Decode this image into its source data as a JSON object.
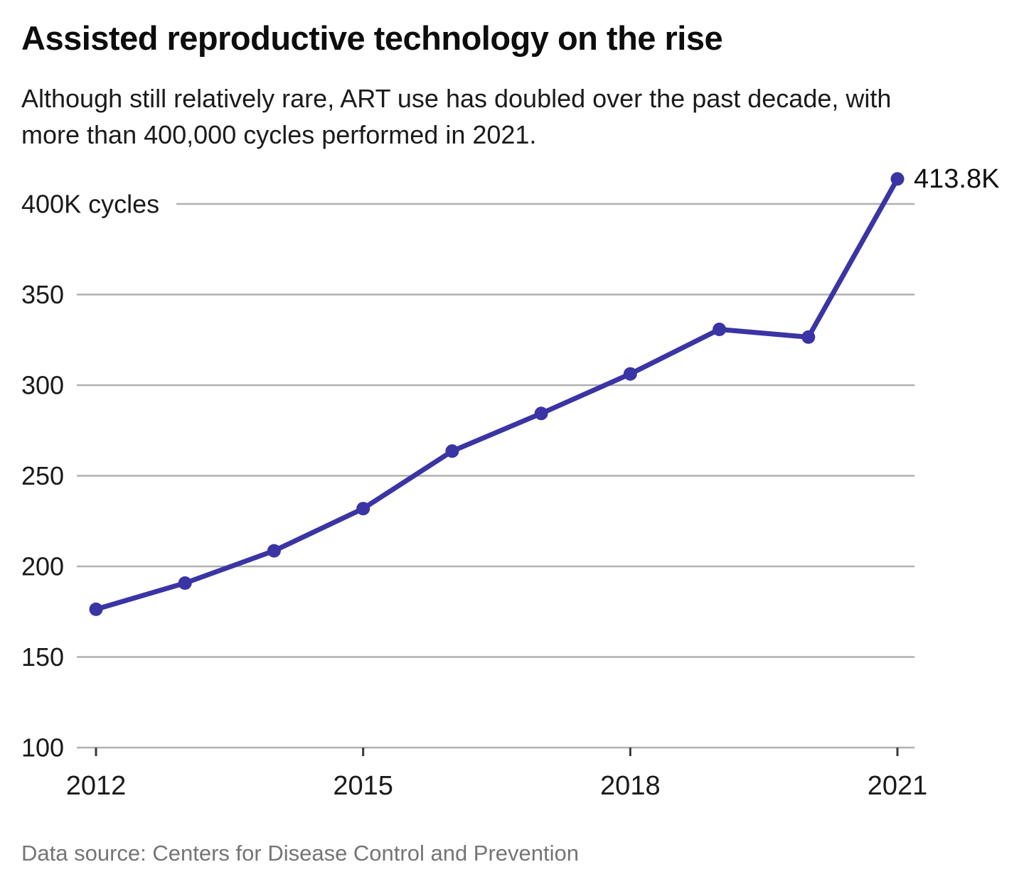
{
  "header": {
    "title": "Assisted reproductive technology on the rise",
    "subtitle": "Although still relatively rare, ART use has doubled over the past decade, with more than 400,000 cycles performed in 2021."
  },
  "footer": {
    "source": "Data source: Centers for Disease Control and Prevention"
  },
  "chart_data": {
    "type": "line",
    "title": "Assisted reproductive technology on the rise",
    "x": [
      2012,
      2013,
      2014,
      2015,
      2016,
      2017,
      2018,
      2019,
      2020,
      2021
    ],
    "values": [
      176.3,
      190.8,
      208.6,
      231.9,
      263.6,
      284.4,
      306.2,
      330.8,
      326.5,
      413.8
    ],
    "unit": "thousand ART cycles",
    "xlabel": "",
    "ylabel": "cycles (thousands)",
    "ylim": [
      100,
      430
    ],
    "yticks": [
      100,
      150,
      200,
      250,
      300,
      350,
      400
    ],
    "ytick_labels": [
      "100",
      "150",
      "200",
      "250",
      "300",
      "350",
      "400K cycles"
    ],
    "xticks": [
      2012,
      2015,
      2018,
      2021
    ],
    "xtick_labels": [
      "2012",
      "2015",
      "2018",
      "2021"
    ],
    "annotation": {
      "label": "413.8K",
      "x": 2021,
      "y": 413.8
    },
    "grid": true,
    "legend": false,
    "colors": {
      "line": "#3a34a4",
      "point": "#3a34a4",
      "grid": "#b0b0b0",
      "tick": "#3a3a3a",
      "text": "#1a1a1a",
      "annotation": "#111111"
    }
  }
}
